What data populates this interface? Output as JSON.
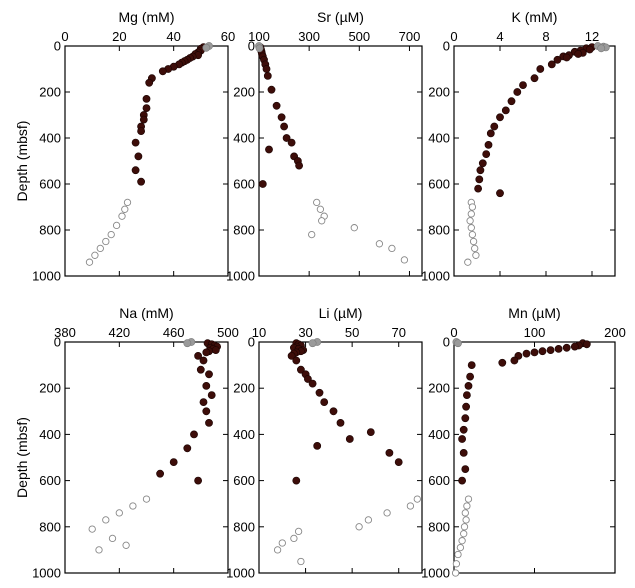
{
  "chart_data": [
    {
      "type": "scatter",
      "title": "Mg (mM)",
      "ylabel": "Depth (mbsf)",
      "xlim": [
        0,
        60
      ],
      "xticks": [
        0,
        20,
        40,
        60
      ],
      "ylim": [
        0,
        1000
      ],
      "yticks": [
        0,
        200,
        400,
        600,
        800,
        1000
      ],
      "y_inverted": true,
      "series": [
        {
          "style": "filled",
          "x": [
            51,
            50,
            50,
            49,
            48,
            49,
            47,
            46,
            45,
            44,
            43,
            42,
            40,
            38,
            36,
            32,
            31,
            30,
            30,
            29,
            29,
            28,
            28,
            26,
            27,
            26,
            28
          ],
          "y": [
            5,
            12,
            20,
            28,
            35,
            40,
            46,
            52,
            60,
            66,
            72,
            80,
            90,
            100,
            110,
            140,
            160,
            230,
            270,
            300,
            320,
            350,
            370,
            420,
            480,
            540,
            590
          ]
        },
        {
          "style": "gray",
          "x": [
            53,
            52
          ],
          "y": [
            0,
            8
          ]
        },
        {
          "style": "open",
          "x": [
            23,
            22,
            21,
            19,
            17,
            15,
            13,
            11,
            9
          ],
          "y": [
            680,
            710,
            740,
            780,
            820,
            850,
            880,
            910,
            940
          ]
        }
      ]
    },
    {
      "type": "scatter",
      "title": "Sr (µM)",
      "xlim": [
        100,
        750
      ],
      "xticks": [
        100,
        300,
        500,
        700
      ],
      "ylim": [
        0,
        1000
      ],
      "yticks": [
        0,
        200,
        400,
        600,
        800,
        1000
      ],
      "y_inverted": true,
      "series": [
        {
          "style": "filled",
          "x": [
            105,
            108,
            110,
            112,
            115,
            120,
            125,
            130,
            135,
            150,
            170,
            190,
            200,
            210,
            230,
            240,
            255,
            260,
            140,
            115
          ],
          "y": [
            5,
            15,
            25,
            35,
            45,
            60,
            80,
            100,
            130,
            190,
            260,
            310,
            350,
            400,
            420,
            480,
            500,
            520,
            450,
            600
          ]
        },
        {
          "style": "gray",
          "x": [
            100,
            102
          ],
          "y": [
            0,
            10
          ]
        },
        {
          "style": "open",
          "x": [
            330,
            345,
            360,
            350,
            310,
            480,
            580,
            630,
            680
          ],
          "y": [
            680,
            710,
            740,
            760,
            820,
            790,
            860,
            880,
            930
          ]
        }
      ]
    },
    {
      "type": "scatter",
      "title": "K (mM)",
      "xlim": [
        0,
        14
      ],
      "xticks": [
        0,
        4,
        8,
        12
      ],
      "ylim": [
        0,
        1000
      ],
      "yticks": [
        0,
        200,
        400,
        600,
        800,
        1000
      ],
      "y_inverted": true,
      "series": [
        {
          "style": "filled",
          "x": [
            12,
            11.5,
            11.8,
            11,
            10.5,
            11.2,
            10.8,
            10,
            9.5,
            9.8,
            9,
            8.5,
            7.5,
            7,
            6,
            5.5,
            5,
            4.5,
            4,
            3.5,
            3.2,
            3,
            2.8,
            2.5,
            2.3,
            2.2,
            2.1,
            4
          ],
          "y": [
            5,
            10,
            15,
            20,
            25,
            30,
            35,
            40,
            45,
            50,
            60,
            80,
            100,
            140,
            170,
            200,
            240,
            280,
            310,
            350,
            380,
            430,
            470,
            510,
            540,
            580,
            620,
            640
          ]
        },
        {
          "style": "gray",
          "x": [
            12.5,
            13,
            13.2,
            12.8
          ],
          "y": [
            0,
            3,
            6,
            10
          ]
        },
        {
          "style": "open",
          "x": [
            1.5,
            1.6,
            1.5,
            1.4,
            1.5,
            1.6,
            1.7,
            1.8,
            1.9,
            1.2
          ],
          "y": [
            680,
            700,
            730,
            760,
            790,
            820,
            850,
            880,
            910,
            940
          ]
        }
      ]
    },
    {
      "type": "scatter",
      "title": "Na (mM)",
      "ylabel": "Depth (mbsf)",
      "xlim": [
        380,
        500
      ],
      "xticks": [
        380,
        420,
        460,
        500
      ],
      "ylim": [
        0,
        1000
      ],
      "yticks": [
        0,
        200,
        400,
        600,
        800,
        1000
      ],
      "y_inverted": true,
      "series": [
        {
          "style": "filled",
          "x": [
            485,
            488,
            490,
            492,
            487,
            489,
            491,
            486,
            484,
            478,
            482,
            480,
            486,
            484,
            488,
            482,
            484,
            486,
            475,
            470,
            460,
            450,
            478
          ],
          "y": [
            5,
            10,
            15,
            20,
            25,
            30,
            35,
            40,
            45,
            60,
            80,
            120,
            140,
            190,
            230,
            260,
            300,
            350,
            400,
            460,
            520,
            570,
            600
          ]
        },
        {
          "style": "gray",
          "x": [
            473,
            470
          ],
          "y": [
            0,
            5
          ]
        },
        {
          "style": "open",
          "x": [
            440,
            430,
            420,
            410,
            400,
            415,
            425,
            405
          ],
          "y": [
            680,
            710,
            740,
            770,
            810,
            850,
            880,
            900
          ]
        }
      ]
    },
    {
      "type": "scatter",
      "title": "Li (µM)",
      "xlim": [
        10,
        80
      ],
      "xticks": [
        10,
        30,
        50,
        70
      ],
      "ylim": [
        0,
        1000
      ],
      "yticks": [
        0,
        200,
        400,
        600,
        800,
        1000
      ],
      "y_inverted": true,
      "series": [
        {
          "style": "filled",
          "x": [
            26,
            27,
            28,
            26,
            25,
            27,
            29,
            28,
            26,
            25,
            24,
            26,
            28,
            30,
            31,
            33,
            36,
            38,
            42,
            45,
            49,
            58,
            66,
            70,
            35,
            26
          ],
          "y": [
            5,
            10,
            15,
            20,
            25,
            30,
            35,
            40,
            45,
            50,
            60,
            80,
            120,
            140,
            160,
            180,
            220,
            260,
            300,
            350,
            420,
            390,
            480,
            520,
            450,
            600
          ]
        },
        {
          "style": "gray",
          "x": [
            35,
            33
          ],
          "y": [
            0,
            5
          ]
        },
        {
          "style": "open",
          "x": [
            78,
            75,
            65,
            57,
            53,
            27,
            25,
            20,
            18,
            28
          ],
          "y": [
            680,
            710,
            740,
            770,
            800,
            820,
            850,
            870,
            900,
            950
          ]
        }
      ]
    },
    {
      "type": "scatter",
      "title": "Mn (µM)",
      "xlim": [
        0,
        200
      ],
      "xticks": [
        0,
        100,
        200
      ],
      "ylim": [
        0,
        1000
      ],
      "yticks": [
        0,
        200,
        400,
        600,
        800,
        1000
      ],
      "y_inverted": true,
      "series": [
        {
          "style": "filled",
          "x": [
            160,
            165,
            155,
            150,
            140,
            130,
            120,
            110,
            100,
            90,
            80,
            75,
            60,
            22,
            20,
            18,
            16,
            15,
            14,
            12,
            10,
            12,
            14,
            10
          ],
          "y": [
            5,
            10,
            15,
            20,
            25,
            30,
            35,
            40,
            45,
            50,
            60,
            80,
            90,
            100,
            150,
            190,
            230,
            280,
            330,
            380,
            420,
            480,
            550,
            600
          ]
        },
        {
          "style": "gray",
          "x": [
            3,
            5
          ],
          "y": [
            0,
            5
          ]
        },
        {
          "style": "open",
          "x": [
            18,
            16,
            14,
            15,
            13,
            12,
            10,
            8,
            5,
            3,
            2
          ],
          "y": [
            680,
            710,
            740,
            770,
            800,
            830,
            860,
            890,
            920,
            960,
            1000
          ]
        }
      ]
    }
  ]
}
